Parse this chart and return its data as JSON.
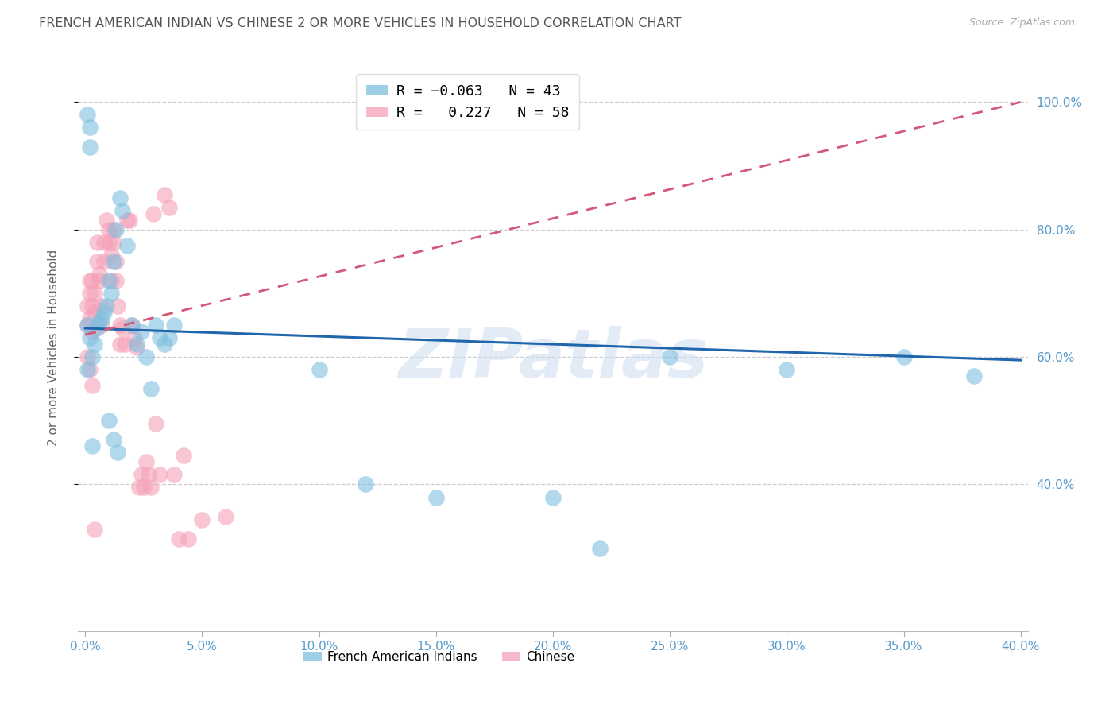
{
  "title": "FRENCH AMERICAN INDIAN VS CHINESE 2 OR MORE VEHICLES IN HOUSEHOLD CORRELATION CHART",
  "source": "Source: ZipAtlas.com",
  "ylabel": "2 or more Vehicles in Household",
  "xlim": [
    -0.003,
    0.403
  ],
  "ylim": [
    0.17,
    1.06
  ],
  "yticks": [
    0.4,
    0.6,
    0.8,
    1.0
  ],
  "xticks": [
    0.0,
    0.05,
    0.1,
    0.15,
    0.2,
    0.25,
    0.3,
    0.35,
    0.4
  ],
  "blue_R": -0.063,
  "blue_N": 43,
  "pink_R": 0.227,
  "pink_N": 58,
  "watermark": "ZIPatlas",
  "legend_label_blue": "French American Indians",
  "legend_label_pink": "Chinese",
  "blue_color": "#7fbfdf",
  "pink_color": "#f5a0b8",
  "blue_line_color": "#2166ac",
  "pink_line_color": "#d45878",
  "title_color": "#555555",
  "axis_label_color": "#5599cc",
  "blue_x": [
    0.001,
    0.002,
    0.003,
    0.001,
    0.004,
    0.005,
    0.006,
    0.007,
    0.008,
    0.009,
    0.01,
    0.011,
    0.012,
    0.013,
    0.015,
    0.016,
    0.018,
    0.02,
    0.022,
    0.024,
    0.026,
    0.028,
    0.03,
    0.032,
    0.034,
    0.036,
    0.038,
    0.01,
    0.012,
    0.014,
    0.1,
    0.12,
    0.15,
    0.2,
    0.22,
    0.25,
    0.3,
    0.35,
    0.38,
    0.003,
    0.001,
    0.002,
    0.002
  ],
  "blue_y": [
    0.65,
    0.63,
    0.6,
    0.58,
    0.62,
    0.645,
    0.655,
    0.66,
    0.67,
    0.68,
    0.72,
    0.7,
    0.75,
    0.8,
    0.85,
    0.83,
    0.775,
    0.65,
    0.62,
    0.64,
    0.6,
    0.55,
    0.65,
    0.63,
    0.62,
    0.63,
    0.65,
    0.5,
    0.47,
    0.45,
    0.58,
    0.4,
    0.38,
    0.38,
    0.3,
    0.6,
    0.58,
    0.6,
    0.57,
    0.46,
    0.98,
    0.93,
    0.96
  ],
  "pink_x": [
    0.001,
    0.001,
    0.002,
    0.002,
    0.002,
    0.003,
    0.003,
    0.003,
    0.004,
    0.004,
    0.005,
    0.005,
    0.006,
    0.006,
    0.007,
    0.007,
    0.008,
    0.008,
    0.009,
    0.01,
    0.01,
    0.011,
    0.011,
    0.012,
    0.012,
    0.013,
    0.013,
    0.014,
    0.015,
    0.015,
    0.016,
    0.017,
    0.018,
    0.019,
    0.02,
    0.021,
    0.022,
    0.023,
    0.024,
    0.025,
    0.026,
    0.027,
    0.028,
    0.029,
    0.03,
    0.032,
    0.034,
    0.036,
    0.038,
    0.04,
    0.042,
    0.044,
    0.05,
    0.06,
    0.001,
    0.002,
    0.003,
    0.004
  ],
  "pink_y": [
    0.65,
    0.68,
    0.66,
    0.7,
    0.72,
    0.64,
    0.68,
    0.72,
    0.7,
    0.67,
    0.75,
    0.78,
    0.72,
    0.73,
    0.68,
    0.65,
    0.78,
    0.75,
    0.815,
    0.78,
    0.8,
    0.76,
    0.72,
    0.78,
    0.8,
    0.75,
    0.72,
    0.68,
    0.65,
    0.62,
    0.645,
    0.62,
    0.815,
    0.815,
    0.65,
    0.63,
    0.615,
    0.395,
    0.415,
    0.395,
    0.435,
    0.415,
    0.395,
    0.825,
    0.495,
    0.415,
    0.855,
    0.835,
    0.415,
    0.315,
    0.445,
    0.315,
    0.345,
    0.35,
    0.6,
    0.58,
    0.555,
    0.33
  ]
}
